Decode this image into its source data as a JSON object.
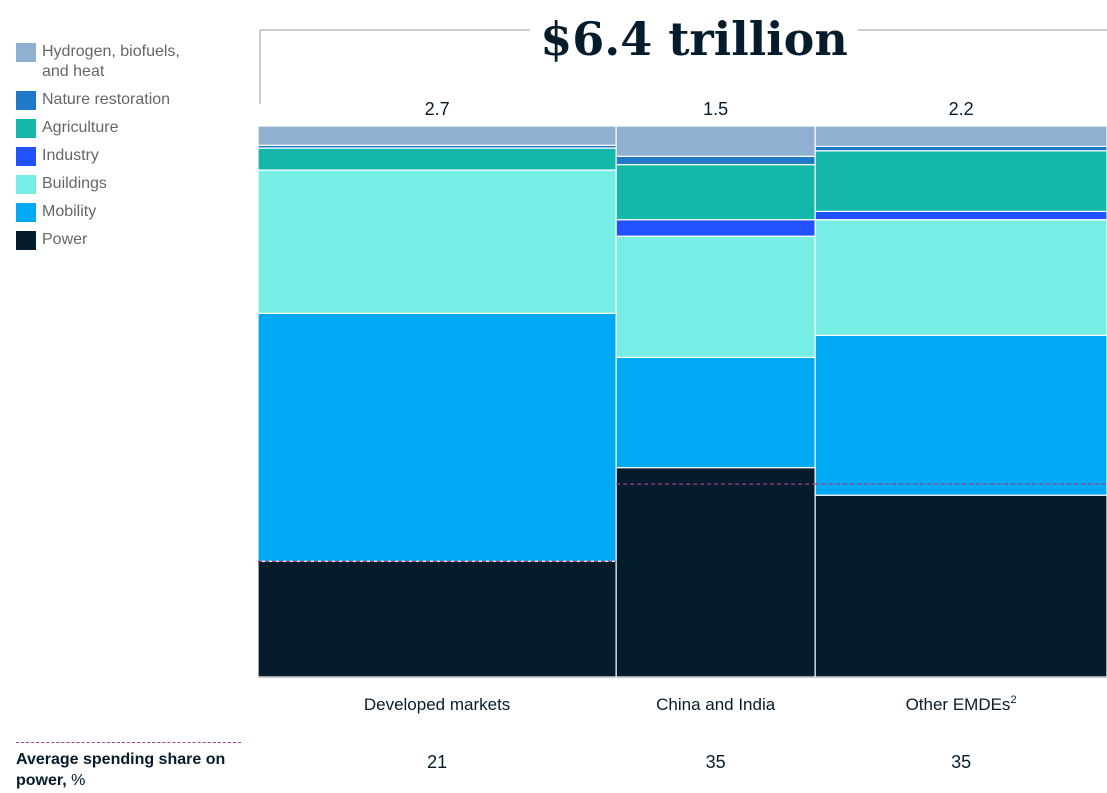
{
  "chart_data": {
    "type": "bar",
    "subtype": "stacked-marimekko",
    "title": "$6.4 trillion",
    "categories": [
      "Developed markets",
      "China and India",
      "Other EMDEs"
    ],
    "category_superscripts": [
      "",
      "",
      "2"
    ],
    "totals": [
      2.7,
      1.5,
      2.2
    ],
    "total_labels": [
      "2.7",
      "1.5",
      "2.2"
    ],
    "series": [
      {
        "name": "Power",
        "color": "#051c2c",
        "values": [
          21,
          38,
          33
        ]
      },
      {
        "name": "Mobility",
        "color": "#00a9f4",
        "values": [
          45,
          20,
          29
        ]
      },
      {
        "name": "Buildings",
        "color": "#76eee5",
        "values": [
          26,
          22,
          21
        ]
      },
      {
        "name": "Industry",
        "color": "#2251ff",
        "values": [
          0,
          3,
          1.5
        ]
      },
      {
        "name": "Agriculture",
        "color": "#14b8ab",
        "values": [
          4,
          10,
          11
        ]
      },
      {
        "name": "Nature restoration",
        "color": "#1f78c8",
        "values": [
          0.5,
          1.5,
          0.8
        ]
      },
      {
        "name": "Hydrogen, biofuels, and heat",
        "color": "#8fb0d1",
        "values": [
          3.5,
          5.5,
          3.7
        ]
      }
    ],
    "average_power_share": [
      21,
      35,
      35
    ],
    "average_power_share_labels": [
      "21",
      "35",
      "35"
    ],
    "average_line_color": "#a63e8a",
    "ylim": [
      0,
      100
    ],
    "legend_position": "top-left"
  },
  "legend": [
    {
      "label": "Hydrogen, biofuels,\nand heat",
      "color": "#8fb0d1"
    },
    {
      "label": "Nature restoration",
      "color": "#1f78c8"
    },
    {
      "label": "Agriculture",
      "color": "#14b8ab"
    },
    {
      "label": "Industry",
      "color": "#2251ff"
    },
    {
      "label": "Buildings",
      "color": "#76eee5"
    },
    {
      "label": "Mobility",
      "color": "#00a9f4"
    },
    {
      "label": "Power",
      "color": "#051c2c"
    }
  ],
  "footer": {
    "label_bold": "Average spending share on power,",
    "label_unit": "%"
  }
}
